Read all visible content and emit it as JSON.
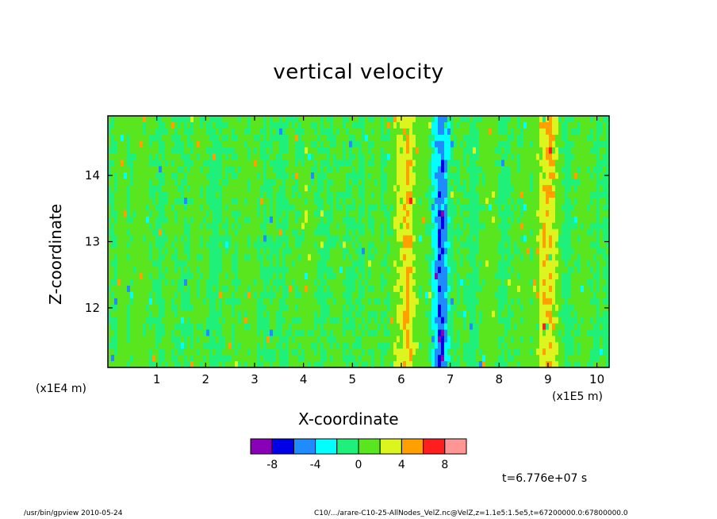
{
  "chart_data": {
    "type": "heatmap",
    "title": "vertical velocity",
    "xlabel": "X-coordinate",
    "ylabel": "Z-coordinate",
    "x_unit_left": "(x1E4 m)",
    "x_unit_right": "(x1E5 m)",
    "xlim": [
      0,
      10.25
    ],
    "ylim": [
      11.1,
      14.9
    ],
    "x_ticks": [
      "1",
      "2",
      "3",
      "4",
      "5",
      "6",
      "7",
      "8",
      "9",
      "10"
    ],
    "x_tick_values": [
      1,
      2,
      3,
      4,
      5,
      6,
      7,
      8,
      9,
      10
    ],
    "y_ticks": [
      "12",
      "13",
      "14"
    ],
    "y_tick_values": [
      12,
      13,
      14
    ],
    "colorbar": {
      "levels": [
        -10,
        -8,
        -6,
        -4,
        -2,
        0,
        2,
        4,
        6,
        8,
        10
      ],
      "colors": [
        "#8a00b8",
        "#0000e6",
        "#1e8cff",
        "#00ffff",
        "#1ef07a",
        "#5ae61e",
        "#dcf51e",
        "#ffa000",
        "#ff1e1e",
        "#ff9696"
      ],
      "tick_labels": [
        "-8",
        "-4",
        "0",
        "4",
        "8"
      ],
      "tick_values": [
        -8,
        -4,
        0,
        4,
        8
      ]
    },
    "features": [
      {
        "x": 6.8,
        "kind": "downdraft",
        "value": -6
      },
      {
        "x": 9.0,
        "kind": "updraft",
        "value": 4
      },
      {
        "x": 6.1,
        "kind": "updraft",
        "value": 3
      },
      {
        "x": 4.1,
        "kind": "updraft",
        "value": 2
      }
    ],
    "time_label": "t=6.776e+07 s"
  },
  "footer": {
    "left": "/usr/bin/gpview   2010-05-24",
    "right": "C10/.../arare-C10-25-AllNodes_VelZ.nc@VelZ,z=1.1e5:1.5e5,t=67200000.0:67800000.0"
  }
}
